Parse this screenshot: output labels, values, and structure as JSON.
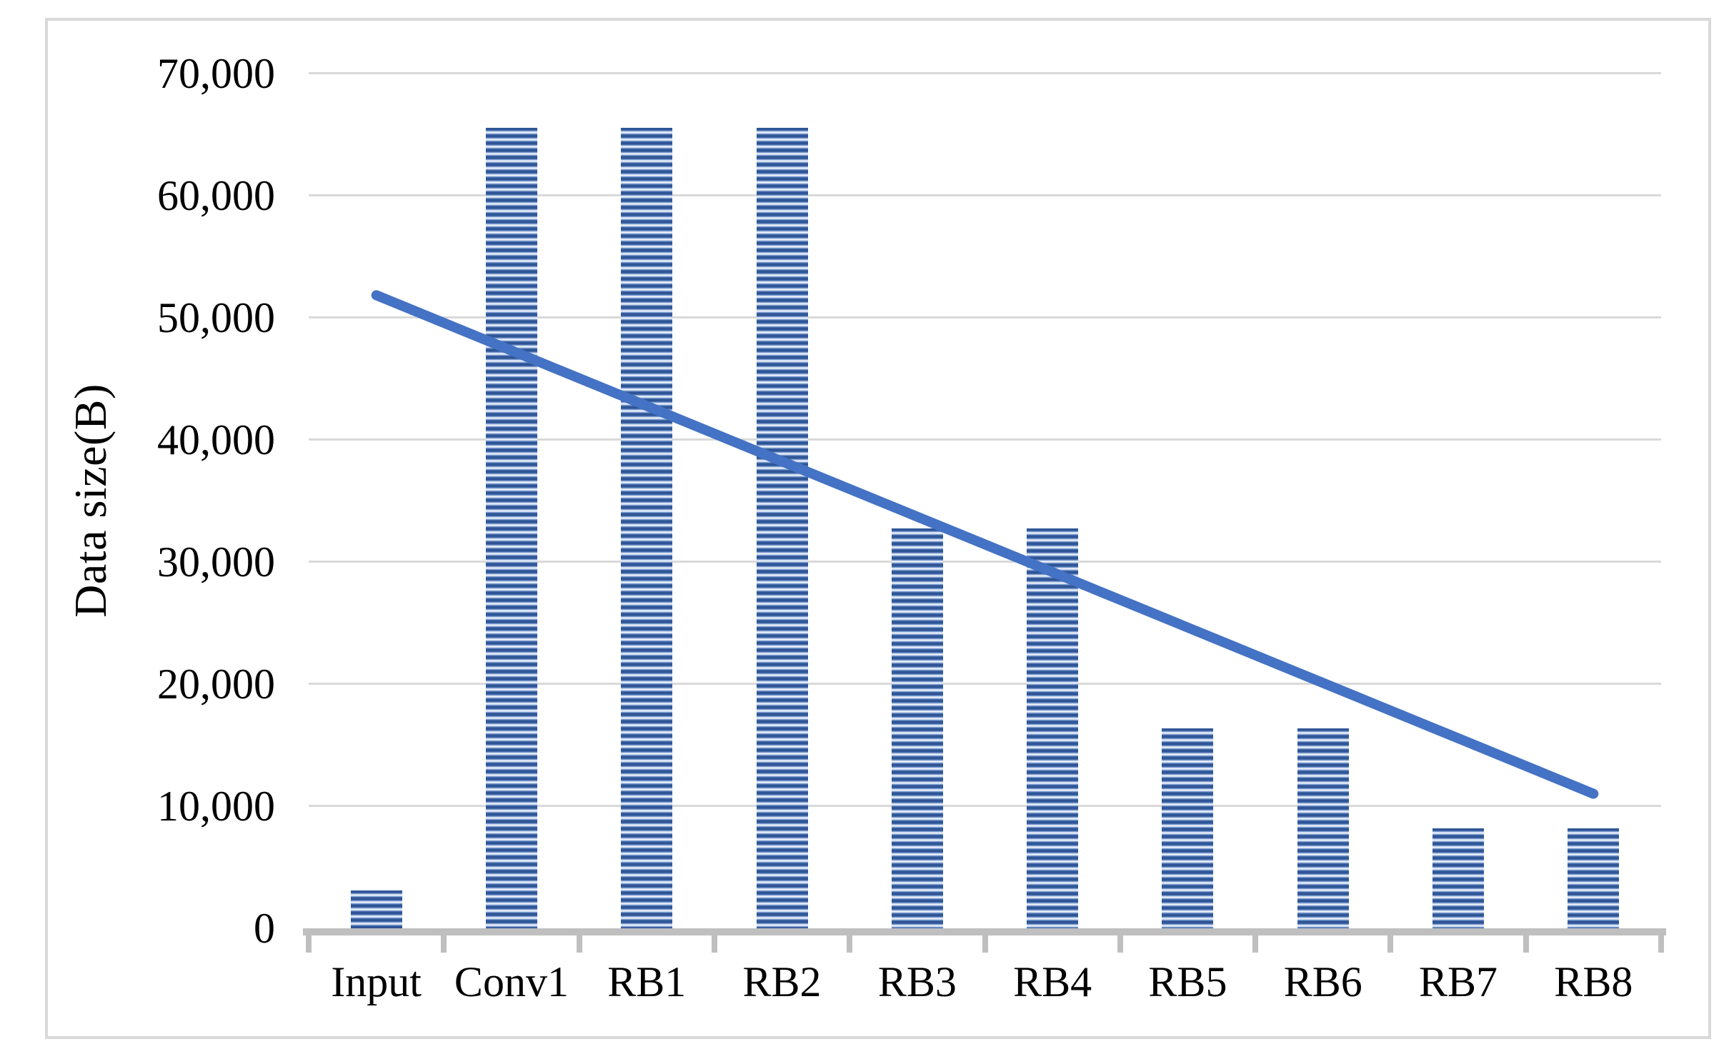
{
  "chart_data": {
    "type": "bar",
    "title": "",
    "xlabel": "",
    "ylabel": "Data size(B)",
    "categories": [
      "Input",
      "Conv1",
      "RB1",
      "RB2",
      "RB3",
      "RB4",
      "RB5",
      "RB6",
      "RB7",
      "RB8"
    ],
    "values": [
      3072,
      65536,
      65536,
      65536,
      32768,
      32768,
      16384,
      16384,
      8192,
      8192
    ],
    "series": [
      {
        "name": "Data size",
        "type": "bar",
        "values": [
          3072,
          65536,
          65536,
          65536,
          32768,
          32768,
          16384,
          16384,
          8192,
          8192
        ]
      },
      {
        "name": "Linear trendline",
        "type": "line",
        "values": [
          51850,
          47315,
          42780,
          38240,
          33705,
          29170,
          24630,
          20095,
          15560,
          11020
        ]
      }
    ],
    "ylim": [
      0,
      70000
    ],
    "ytick_interval": 10000,
    "yticks": [
      {
        "value": 0,
        "label": "0"
      },
      {
        "value": 10000,
        "label": "10,000"
      },
      {
        "value": 20000,
        "label": "20,000"
      },
      {
        "value": 30000,
        "label": "30,000"
      },
      {
        "value": 40000,
        "label": "40,000"
      },
      {
        "value": 50000,
        "label": "50,000"
      },
      {
        "value": 60000,
        "label": "60,000"
      },
      {
        "value": 70000,
        "label": "70,000"
      }
    ],
    "grid": true,
    "legend_position": "none",
    "colors": {
      "bar_dark": "#2e5597",
      "bar_mid": "#7d9dd0",
      "bar_light": "#eef2fa",
      "trendline": "#4472c4",
      "gridline": "#d9d9d9",
      "axis": "#bfbfbf",
      "text": "#000000",
      "border": "#d9d9d9",
      "background": "#ffffff"
    }
  }
}
